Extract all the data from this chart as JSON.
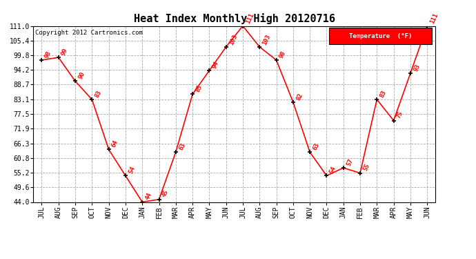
{
  "title": "Heat Index Monthly High 20120716",
  "copyright": "Copyright 2012 Cartronics.com",
  "legend_label": "Temperature  (°F)",
  "months": [
    "JUL",
    "AUG",
    "SEP",
    "OCT",
    "NOV",
    "DEC",
    "JAN",
    "FEB",
    "MAR",
    "APR",
    "MAY",
    "JUN",
    "JUL",
    "AUG",
    "SEP",
    "OCT",
    "NOV",
    "DEC",
    "JAN",
    "FEB",
    "MAR",
    "APR",
    "MAY",
    "JUN"
  ],
  "values": [
    98,
    99,
    90,
    83,
    64,
    54,
    44,
    45,
    63,
    85,
    94,
    103,
    111,
    103,
    98,
    82,
    63,
    54,
    57,
    55,
    83,
    75,
    93,
    111
  ],
  "line_color": "red",
  "marker_color": "black",
  "label_color": "red",
  "background_color": "#ffffff",
  "grid_color": "#aaaaaa",
  "ylim": [
    44.0,
    111.0
  ],
  "yticks": [
    44.0,
    49.6,
    55.2,
    60.8,
    66.3,
    71.9,
    77.5,
    83.1,
    88.7,
    94.2,
    99.8,
    105.4,
    111.0
  ],
  "legend_bg": "red",
  "legend_text_color": "white",
  "title_fontsize": 11,
  "label_fontsize": 6.5,
  "tick_fontsize": 7,
  "copyright_fontsize": 6.5
}
